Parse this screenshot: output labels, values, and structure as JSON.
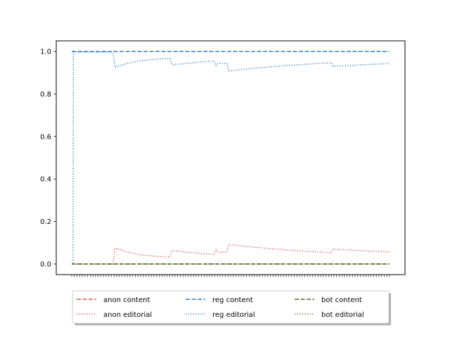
{
  "chart_data": {
    "type": "line",
    "title": "",
    "xlabel": "",
    "ylabel": "",
    "x_tick_labels_visible": false,
    "x_range": [
      0,
      120
    ],
    "ylim": [
      -0.05,
      1.05
    ],
    "yticks": [
      "0.0",
      "0.2",
      "0.4",
      "0.6",
      "0.8",
      "1.0"
    ],
    "grid": false,
    "legend_position": "bottom-center",
    "legend_columns": 3,
    "series": [
      {
        "name": "anon content",
        "color": "#d9534f",
        "style": "dashed",
        "points": [
          [
            0,
            0.0
          ],
          [
            120,
            0.0
          ]
        ]
      },
      {
        "name": "anon editorial",
        "color": "#d9534f",
        "style": "dotted",
        "points": [
          [
            0,
            0.0
          ],
          [
            15.6,
            0.0
          ],
          [
            16.3,
            0.075
          ],
          [
            20,
            0.06
          ],
          [
            25,
            0.045
          ],
          [
            30,
            0.038
          ],
          [
            36,
            0.033
          ],
          [
            37.1,
            0.033
          ],
          [
            37.8,
            0.063
          ],
          [
            42,
            0.058
          ],
          [
            48,
            0.05
          ],
          [
            52,
            0.046
          ],
          [
            53.8,
            0.046
          ],
          [
            54.5,
            0.066
          ],
          [
            55.2,
            0.056
          ],
          [
            58.6,
            0.056
          ],
          [
            59.3,
            0.092
          ],
          [
            65,
            0.084
          ],
          [
            75,
            0.072
          ],
          [
            85,
            0.063
          ],
          [
            95,
            0.055
          ],
          [
            98,
            0.053
          ],
          [
            98.7,
            0.07
          ],
          [
            105,
            0.066
          ],
          [
            112,
            0.061
          ],
          [
            120,
            0.057
          ]
        ]
      },
      {
        "name": "reg content",
        "color": "#2f7ec1",
        "style": "dashed",
        "points": [
          [
            0,
            1.0
          ],
          [
            120,
            1.0
          ]
        ]
      },
      {
        "name": "reg editorial",
        "color": "#2f7ec1",
        "style": "dotted",
        "points": [
          [
            0,
            0.0
          ],
          [
            0.5,
            0.0
          ],
          [
            0.6,
            0.997
          ],
          [
            1.5,
            0.997
          ],
          [
            15.6,
            0.997
          ],
          [
            16.3,
            0.925
          ],
          [
            20,
            0.94
          ],
          [
            25,
            0.955
          ],
          [
            30,
            0.962
          ],
          [
            36,
            0.967
          ],
          [
            37.1,
            0.967
          ],
          [
            37.8,
            0.937
          ],
          [
            42,
            0.942
          ],
          [
            48,
            0.95
          ],
          [
            52,
            0.954
          ],
          [
            53.8,
            0.954
          ],
          [
            54.5,
            0.934
          ],
          [
            55.2,
            0.944
          ],
          [
            58.6,
            0.944
          ],
          [
            59.3,
            0.908
          ],
          [
            65,
            0.916
          ],
          [
            75,
            0.928
          ],
          [
            85,
            0.937
          ],
          [
            95,
            0.945
          ],
          [
            98,
            0.947
          ],
          [
            98.7,
            0.93
          ],
          [
            105,
            0.934
          ],
          [
            112,
            0.939
          ],
          [
            120,
            0.943
          ]
        ]
      },
      {
        "name": "bot content",
        "color": "#556b2f",
        "style": "dashed",
        "points": [
          [
            0,
            0.0
          ],
          [
            120,
            0.0
          ]
        ]
      },
      {
        "name": "bot editorial",
        "color": "#556b2f",
        "style": "dotted",
        "points": [
          [
            0,
            0.0
          ],
          [
            120,
            0.0
          ]
        ]
      }
    ]
  }
}
